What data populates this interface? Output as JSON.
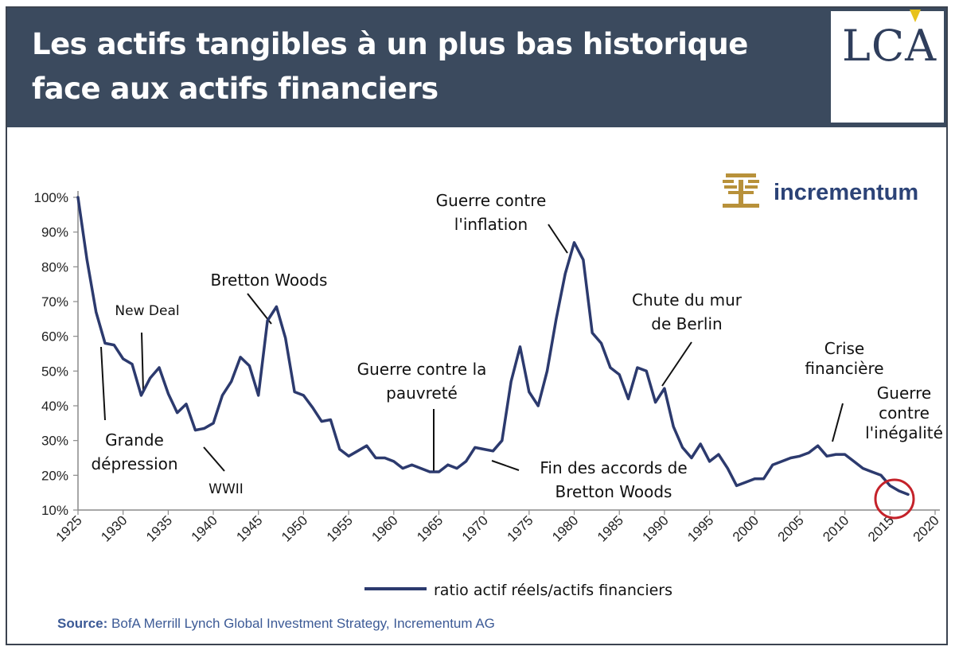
{
  "header": {
    "title_line1": "Les actifs tangibles à un plus bas historique",
    "title_line2": "face aux actifs financiers",
    "logo_text": "LCA"
  },
  "brand": {
    "name": "incrementum",
    "color": "#2c4377"
  },
  "colors": {
    "header_bg": "#3b4a5e",
    "line": "#2c3a6e",
    "highlight_circle": "#c4222a"
  },
  "source": {
    "label": "Source:",
    "text": "BofA Merrill Lynch Global Investment Strategy, Incrementum AG"
  },
  "chart_data": {
    "type": "line",
    "title": "",
    "xlabel": "",
    "ylabel": "",
    "xlim": [
      1925,
      2020
    ],
    "ylim": [
      0.1,
      1.0
    ],
    "x_ticks": [
      "1925",
      "1930",
      "1935",
      "1940",
      "1945",
      "1950",
      "1955",
      "1960",
      "1965",
      "1970",
      "1975",
      "1980",
      "1985",
      "1990",
      "1995",
      "2000",
      "2005",
      "2010",
      "2015",
      "2020"
    ],
    "y_ticks": [
      "10%",
      "20%",
      "30%",
      "40%",
      "50%",
      "60%",
      "70%",
      "80%",
      "90%",
      "100%"
    ],
    "legend_position": "bottom-center",
    "grid": false,
    "series": [
      {
        "name": "ratio actif réels/actifs financiers",
        "points": [
          [
            1925,
            1.0
          ],
          [
            1926,
            0.82
          ],
          [
            1927,
            0.67
          ],
          [
            1928,
            0.58
          ],
          [
            1929,
            0.575
          ],
          [
            1930,
            0.535
          ],
          [
            1931,
            0.52
          ],
          [
            1932,
            0.43
          ],
          [
            1933,
            0.48
          ],
          [
            1934,
            0.51
          ],
          [
            1935,
            0.435
          ],
          [
            1936,
            0.38
          ],
          [
            1937,
            0.405
          ],
          [
            1938,
            0.33
          ],
          [
            1939,
            0.335
          ],
          [
            1940,
            0.35
          ],
          [
            1941,
            0.43
          ],
          [
            1942,
            0.47
          ],
          [
            1943,
            0.54
          ],
          [
            1944,
            0.515
          ],
          [
            1945,
            0.43
          ],
          [
            1946,
            0.645
          ],
          [
            1947,
            0.685
          ],
          [
            1948,
            0.595
          ],
          [
            1949,
            0.44
          ],
          [
            1950,
            0.43
          ],
          [
            1951,
            0.395
          ],
          [
            1952,
            0.355
          ],
          [
            1953,
            0.36
          ],
          [
            1954,
            0.275
          ],
          [
            1955,
            0.255
          ],
          [
            1956,
            0.27
          ],
          [
            1957,
            0.285
          ],
          [
            1958,
            0.25
          ],
          [
            1959,
            0.25
          ],
          [
            1960,
            0.24
          ],
          [
            1961,
            0.22
          ],
          [
            1962,
            0.23
          ],
          [
            1963,
            0.22
          ],
          [
            1964,
            0.21
          ],
          [
            1965,
            0.21
          ],
          [
            1966,
            0.23
          ],
          [
            1967,
            0.22
          ],
          [
            1968,
            0.24
          ],
          [
            1969,
            0.28
          ],
          [
            1970,
            0.275
          ],
          [
            1971,
            0.27
          ],
          [
            1972,
            0.3
          ],
          [
            1973,
            0.47
          ],
          [
            1974,
            0.57
          ],
          [
            1975,
            0.44
          ],
          [
            1976,
            0.4
          ],
          [
            1977,
            0.5
          ],
          [
            1978,
            0.65
          ],
          [
            1979,
            0.78
          ],
          [
            1980,
            0.87
          ],
          [
            1981,
            0.82
          ],
          [
            1982,
            0.61
          ],
          [
            1983,
            0.58
          ],
          [
            1984,
            0.51
          ],
          [
            1985,
            0.49
          ],
          [
            1986,
            0.42
          ],
          [
            1987,
            0.51
          ],
          [
            1988,
            0.5
          ],
          [
            1989,
            0.41
          ],
          [
            1990,
            0.45
          ],
          [
            1991,
            0.34
          ],
          [
            1992,
            0.28
          ],
          [
            1993,
            0.25
          ],
          [
            1994,
            0.29
          ],
          [
            1995,
            0.24
          ],
          [
            1996,
            0.26
          ],
          [
            1997,
            0.22
          ],
          [
            1998,
            0.17
          ],
          [
            1999,
            0.18
          ],
          [
            2000,
            0.19
          ],
          [
            2001,
            0.19
          ],
          [
            2002,
            0.23
          ],
          [
            2003,
            0.24
          ],
          [
            2004,
            0.25
          ],
          [
            2005,
            0.255
          ],
          [
            2006,
            0.265
          ],
          [
            2007,
            0.285
          ],
          [
            2008,
            0.255
          ],
          [
            2009,
            0.26
          ],
          [
            2010,
            0.26
          ],
          [
            2011,
            0.24
          ],
          [
            2012,
            0.22
          ],
          [
            2013,
            0.21
          ],
          [
            2014,
            0.2
          ],
          [
            2015,
            0.17
          ],
          [
            2016,
            0.155
          ],
          [
            2017,
            0.145
          ]
        ]
      }
    ],
    "annotations": [
      {
        "lines": [
          "New Deal"
        ]
      },
      {
        "lines": [
          "Grande",
          "dépression"
        ]
      },
      {
        "lines": [
          "WWII"
        ]
      },
      {
        "lines": [
          "Bretton Woods"
        ]
      },
      {
        "lines": [
          "Guerre contre la",
          "pauvreté"
        ]
      },
      {
        "lines": [
          "Guerre contre",
          "l'inflation"
        ]
      },
      {
        "lines": [
          "Fin des accords de",
          "Bretton Woods"
        ]
      },
      {
        "lines": [
          "Chute du mur",
          "de Berlin"
        ]
      },
      {
        "lines": [
          "Crise",
          "financière"
        ]
      },
      {
        "lines": [
          "Guerre",
          "contre",
          "l'inégalité"
        ]
      }
    ]
  }
}
